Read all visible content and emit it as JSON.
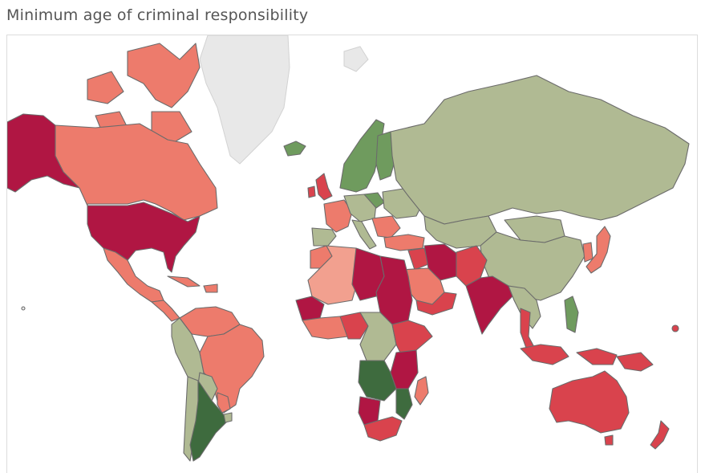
{
  "title": "Minimum age of criminal responsibility",
  "palette": {
    "darkest_red": "#b01643",
    "red": "#d9434d",
    "salmon": "#ed7b6c",
    "light_salmon": "#f2a08f",
    "sage": "#b0ba93",
    "green": "#6f9b5e",
    "dark_green": "#3e6b3e",
    "no_data": "#e8e8e8",
    "border": "#6b6b6b"
  },
  "map": {
    "type": "choropleth",
    "projection": "mercator"
  }
}
